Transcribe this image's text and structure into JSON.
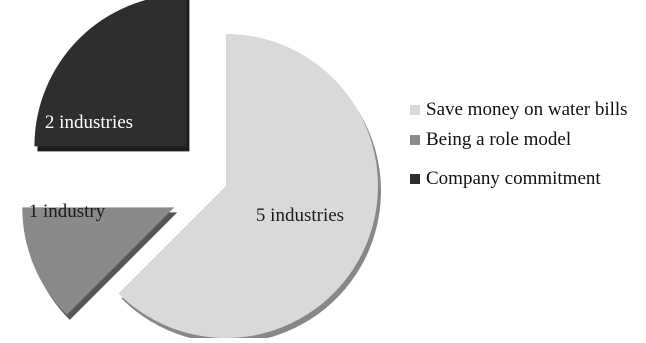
{
  "chart_data": {
    "type": "pie",
    "style": "exploded 3D pie",
    "title": "",
    "slices": [
      {
        "label": "Save money on water bills",
        "value": 5,
        "data_label": "5 industries",
        "color": "#d9d9d9",
        "exploded": false
      },
      {
        "label": "Being a role model",
        "value": 1,
        "data_label": "1 industry",
        "color": "#8a8a8a",
        "exploded": true
      },
      {
        "label": "Company commitment",
        "value": 2,
        "data_label": "2 industries",
        "color": "#2e2e2e",
        "exploded": true
      }
    ],
    "legend": {
      "position": "right",
      "entries": [
        {
          "label": "Save money on water bills",
          "color": "#d9d9d9"
        },
        {
          "label": "Being a role model",
          "color": "#8a8a8a"
        },
        {
          "label": "Company commitment",
          "color": "#2e2e2e"
        }
      ]
    },
    "data_label_colors": {
      "Save money on water bills": "#1a1a1a",
      "Being a role model": "#1a1a1a",
      "Company commitment": "#ffffff"
    }
  }
}
